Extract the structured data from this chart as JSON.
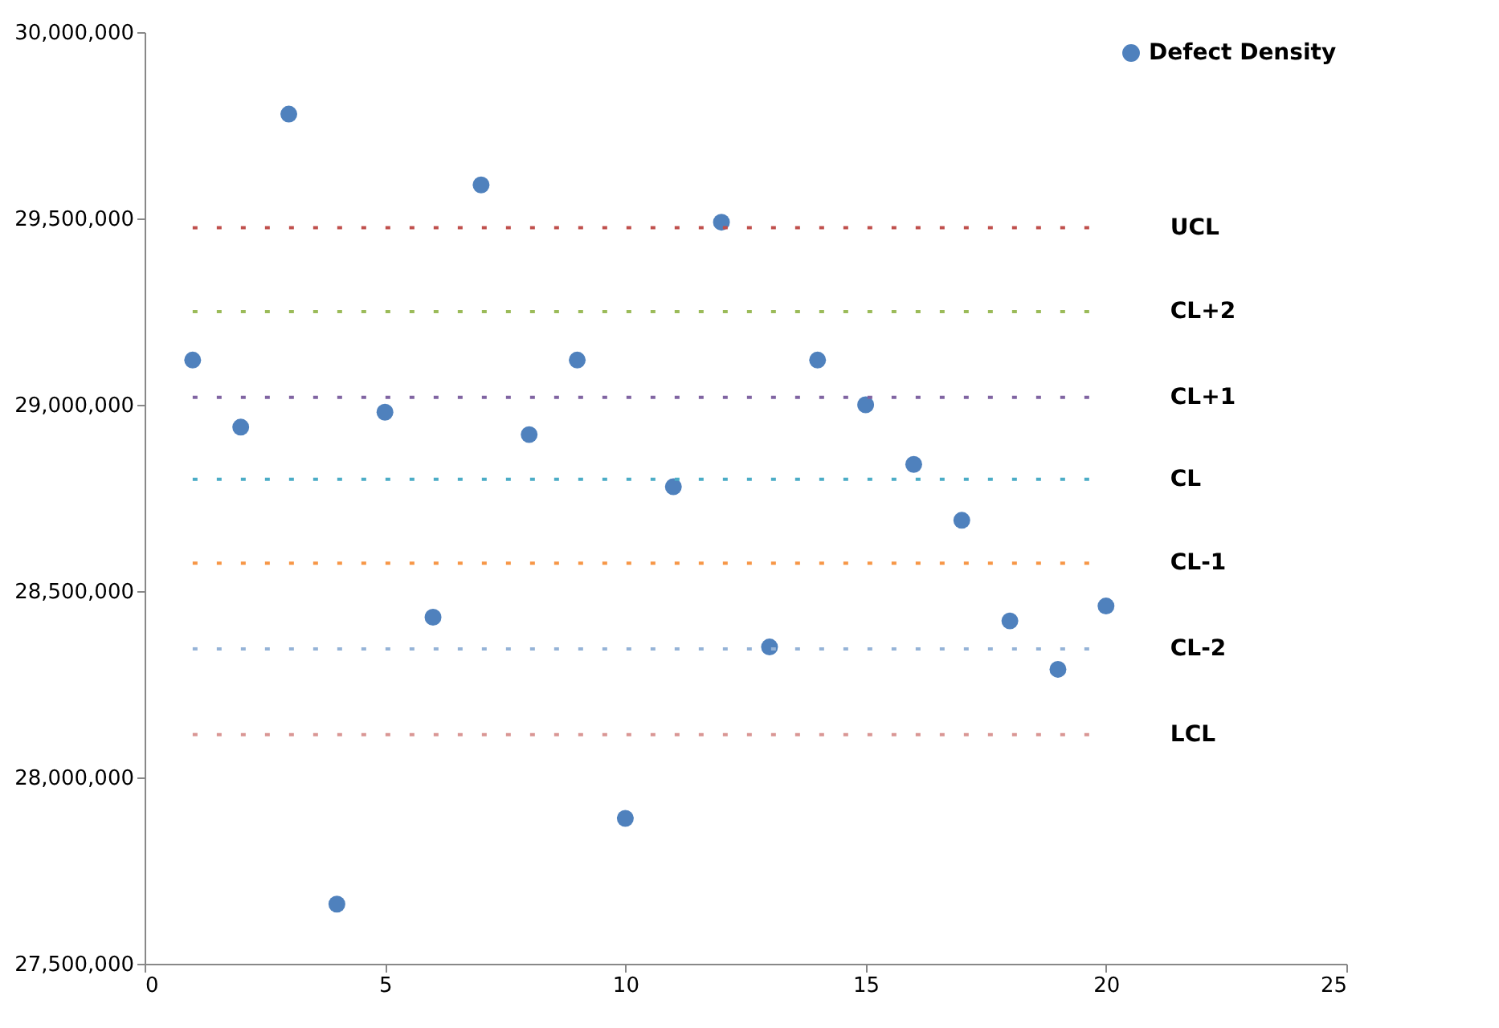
{
  "chart_data": {
    "type": "scatter",
    "x": [
      1,
      2,
      3,
      4,
      5,
      6,
      7,
      8,
      9,
      10,
      11,
      12,
      13,
      14,
      15,
      16,
      17,
      18,
      19,
      20
    ],
    "series": [
      {
        "name": "Defect Density",
        "color": "#4f81bd",
        "values": [
          29120000,
          28940000,
          29780000,
          27660000,
          28980000,
          28430000,
          29590000,
          28920000,
          29120000,
          27890000,
          28780000,
          29490000,
          28350000,
          29120000,
          29000000,
          28840000,
          28690000,
          28420000,
          28290000,
          28460000
        ]
      }
    ],
    "ref_lines": [
      {
        "axis": "y",
        "value": 29475000,
        "label": "UCL",
        "color": "#c0504d",
        "line_style": "dotted"
      },
      {
        "axis": "y",
        "value": 29250000,
        "label": "CL+2",
        "color": "#9bbb59",
        "line_style": "dotted"
      },
      {
        "axis": "y",
        "value": 29020000,
        "label": "CL+1",
        "color": "#8064a2",
        "line_style": "dotted"
      },
      {
        "axis": "y",
        "value": 28800000,
        "label": "CL",
        "color": "#4bacc6",
        "line_style": "dotted"
      },
      {
        "axis": "y",
        "value": 28575000,
        "label": "CL-1",
        "color": "#f79646",
        "line_style": "dotted"
      },
      {
        "axis": "y",
        "value": 28345000,
        "label": "CL-2",
        "color": "#95b3d7",
        "line_style": "dotted"
      },
      {
        "axis": "y",
        "value": 28115000,
        "label": "LCL",
        "color": "#d99694",
        "line_style": "dotted"
      }
    ],
    "xlim": [
      0,
      25
    ],
    "xticks": [
      0,
      5,
      10,
      15,
      20,
      25
    ],
    "ylim": [
      27500000,
      30000000
    ],
    "yticks": [
      {
        "value": 27500000,
        "label": "27,500,000"
      },
      {
        "value": 28000000,
        "label": "28,000,000"
      },
      {
        "value": 28500000,
        "label": "28,500,000"
      },
      {
        "value": 29000000,
        "label": "29,000,000"
      },
      {
        "value": 29500000,
        "label": "29,500,000"
      },
      {
        "value": 30000000,
        "label": "30,000,000"
      }
    ],
    "marker": "circle",
    "grid": false,
    "legend": "top right"
  }
}
